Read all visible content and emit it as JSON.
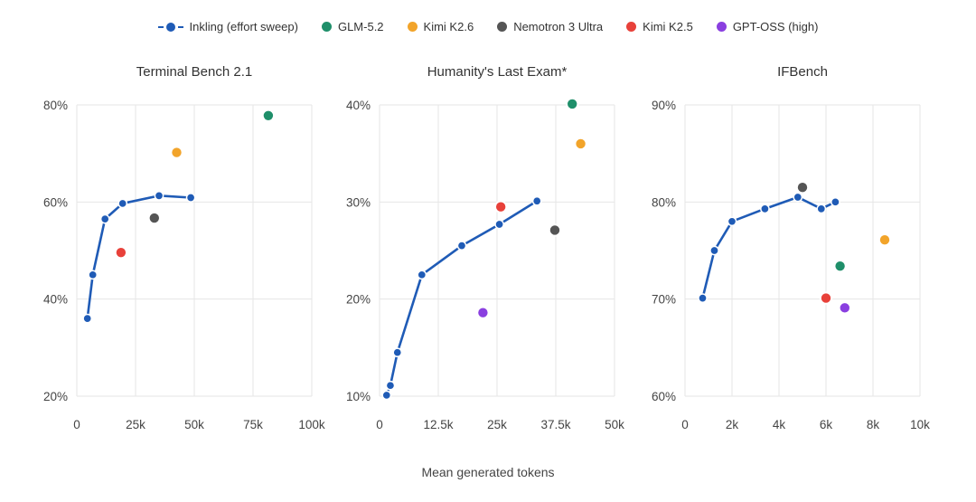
{
  "legend": [
    {
      "name": "Inkling (effort sweep)",
      "color": "#1f5bb6",
      "style": "line"
    },
    {
      "name": "GLM-5.2",
      "color": "#1f8f6a",
      "style": "dot"
    },
    {
      "name": "Kimi K2.6",
      "color": "#f2a42a",
      "style": "dot"
    },
    {
      "name": "Nemotron 3 Ultra",
      "color": "#555555",
      "style": "dot"
    },
    {
      "name": "Kimi K2.5",
      "color": "#e8413a",
      "style": "dot"
    },
    {
      "name": "GPT-OSS (high)",
      "color": "#8a3fe0",
      "style": "dot"
    }
  ],
  "xlabel": "Mean generated tokens",
  "chart_data": [
    {
      "type": "scatter",
      "title": "Terminal Bench 2.1",
      "xlim": [
        0,
        100000
      ],
      "ylim": [
        20,
        80
      ],
      "xticks": [
        0,
        25000,
        50000,
        75000,
        100000
      ],
      "xtick_labels": [
        "0",
        "25k",
        "50k",
        "75k",
        "100k"
      ],
      "yticks": [
        20,
        40,
        60,
        80
      ],
      "ytick_labels": [
        "20%",
        "40%",
        "60%",
        "80%"
      ],
      "grid": true,
      "series": [
        {
          "name": "Inkling (effort sweep)",
          "line": true,
          "points": [
            [
              4500,
              36
            ],
            [
              6800,
              45
            ],
            [
              12000,
              56.5
            ],
            [
              19500,
              59.7
            ],
            [
              35000,
              61.3
            ],
            [
              48500,
              60.9
            ]
          ]
        },
        {
          "name": "GLM-5.2",
          "points": [
            [
              81500,
              77.8
            ]
          ]
        },
        {
          "name": "Kimi K2.6",
          "points": [
            [
              42500,
              70.2
            ]
          ]
        },
        {
          "name": "Nemotron 3 Ultra",
          "points": [
            [
              33000,
              56.7
            ]
          ]
        },
        {
          "name": "Kimi K2.5",
          "points": [
            [
              18800,
              49.6
            ]
          ]
        }
      ]
    },
    {
      "type": "scatter",
      "title": "Humanity's Last Exam*",
      "xlim": [
        0,
        50000
      ],
      "ylim": [
        10,
        40
      ],
      "xticks": [
        0,
        12500,
        25000,
        37500,
        50000
      ],
      "xtick_labels": [
        "0",
        "12.5k",
        "25k",
        "37.5k",
        "50k"
      ],
      "yticks": [
        10,
        20,
        30,
        40
      ],
      "ytick_labels": [
        "10%",
        "20%",
        "30%",
        "40%"
      ],
      "grid": true,
      "series": [
        {
          "name": "Inkling (effort sweep)",
          "line": true,
          "points": [
            [
              1500,
              10.1
            ],
            [
              2300,
              11.1
            ],
            [
              3800,
              14.5
            ],
            [
              9000,
              22.5
            ],
            [
              17500,
              25.5
            ],
            [
              25500,
              27.7
            ],
            [
              33500,
              30.1
            ]
          ]
        },
        {
          "name": "GLM-5.2",
          "points": [
            [
              41000,
              40.1
            ]
          ]
        },
        {
          "name": "Kimi K2.6",
          "points": [
            [
              42800,
              36
            ]
          ]
        },
        {
          "name": "Nemotron 3 Ultra",
          "points": [
            [
              37300,
              27.1
            ]
          ]
        },
        {
          "name": "Kimi K2.5",
          "points": [
            [
              25800,
              29.5
            ]
          ]
        },
        {
          "name": "GPT-OSS (high)",
          "points": [
            [
              22000,
              18.6
            ]
          ]
        }
      ]
    },
    {
      "type": "scatter",
      "title": "IFBench",
      "xlim": [
        0,
        10000
      ],
      "ylim": [
        60,
        90
      ],
      "xticks": [
        0,
        2000,
        4000,
        6000,
        8000,
        10000
      ],
      "xtick_labels": [
        "0",
        "2k",
        "4k",
        "6k",
        "8k",
        "10k"
      ],
      "yticks": [
        60,
        70,
        80,
        90
      ],
      "ytick_labels": [
        "60%",
        "70%",
        "80%",
        "90%"
      ],
      "grid": true,
      "series": [
        {
          "name": "Inkling (effort sweep)",
          "line": true,
          "points": [
            [
              750,
              70.1
            ],
            [
              1250,
              75
            ],
            [
              2000,
              78
            ],
            [
              3400,
              79.3
            ],
            [
              4800,
              80.5
            ],
            [
              5800,
              79.3
            ],
            [
              6400,
              80
            ]
          ]
        },
        {
          "name": "GLM-5.2",
          "points": [
            [
              6600,
              73.4
            ]
          ]
        },
        {
          "name": "Kimi K2.6",
          "points": [
            [
              8500,
              76.1
            ]
          ]
        },
        {
          "name": "Nemotron 3 Ultra",
          "points": [
            [
              5000,
              81.5
            ]
          ]
        },
        {
          "name": "Kimi K2.5",
          "points": [
            [
              6000,
              70.1
            ]
          ]
        },
        {
          "name": "GPT-OSS (high)",
          "points": [
            [
              6800,
              69.1
            ]
          ]
        }
      ]
    }
  ]
}
